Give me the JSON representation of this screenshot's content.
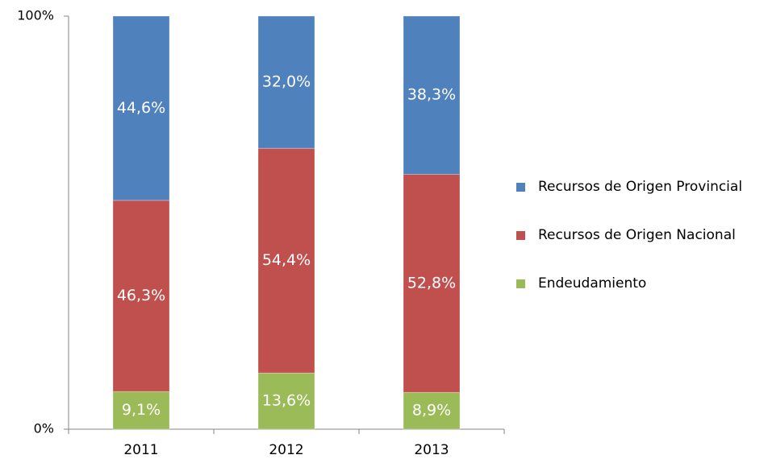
{
  "chart_data": {
    "type": "stacked_bar_100",
    "categories": [
      "2011",
      "2012",
      "2013"
    ],
    "series": [
      {
        "name": "Recursos de Origen Provincial",
        "color": "#4f81bd",
        "values": [
          44.6,
          32.0,
          38.3
        ],
        "value_labels": [
          "44,6%",
          "32,0%",
          "38,3%"
        ]
      },
      {
        "name": "Recursos de Origen Nacional",
        "color": "#c0504d",
        "values": [
          46.3,
          54.4,
          52.8
        ],
        "value_labels": [
          "46,3%",
          "54,4%",
          "52,8%"
        ]
      },
      {
        "name": "Endeudamiento",
        "color": "#9bbb59",
        "values": [
          9.1,
          13.6,
          8.9
        ],
        "value_labels": [
          "9,1%",
          "13,6%",
          "8,9%"
        ]
      }
    ],
    "ylim": [
      0,
      100
    ],
    "yticks": [
      {
        "value": 0,
        "label": "0%"
      },
      {
        "value": 100,
        "label": "100%"
      }
    ],
    "legend": "right"
  }
}
